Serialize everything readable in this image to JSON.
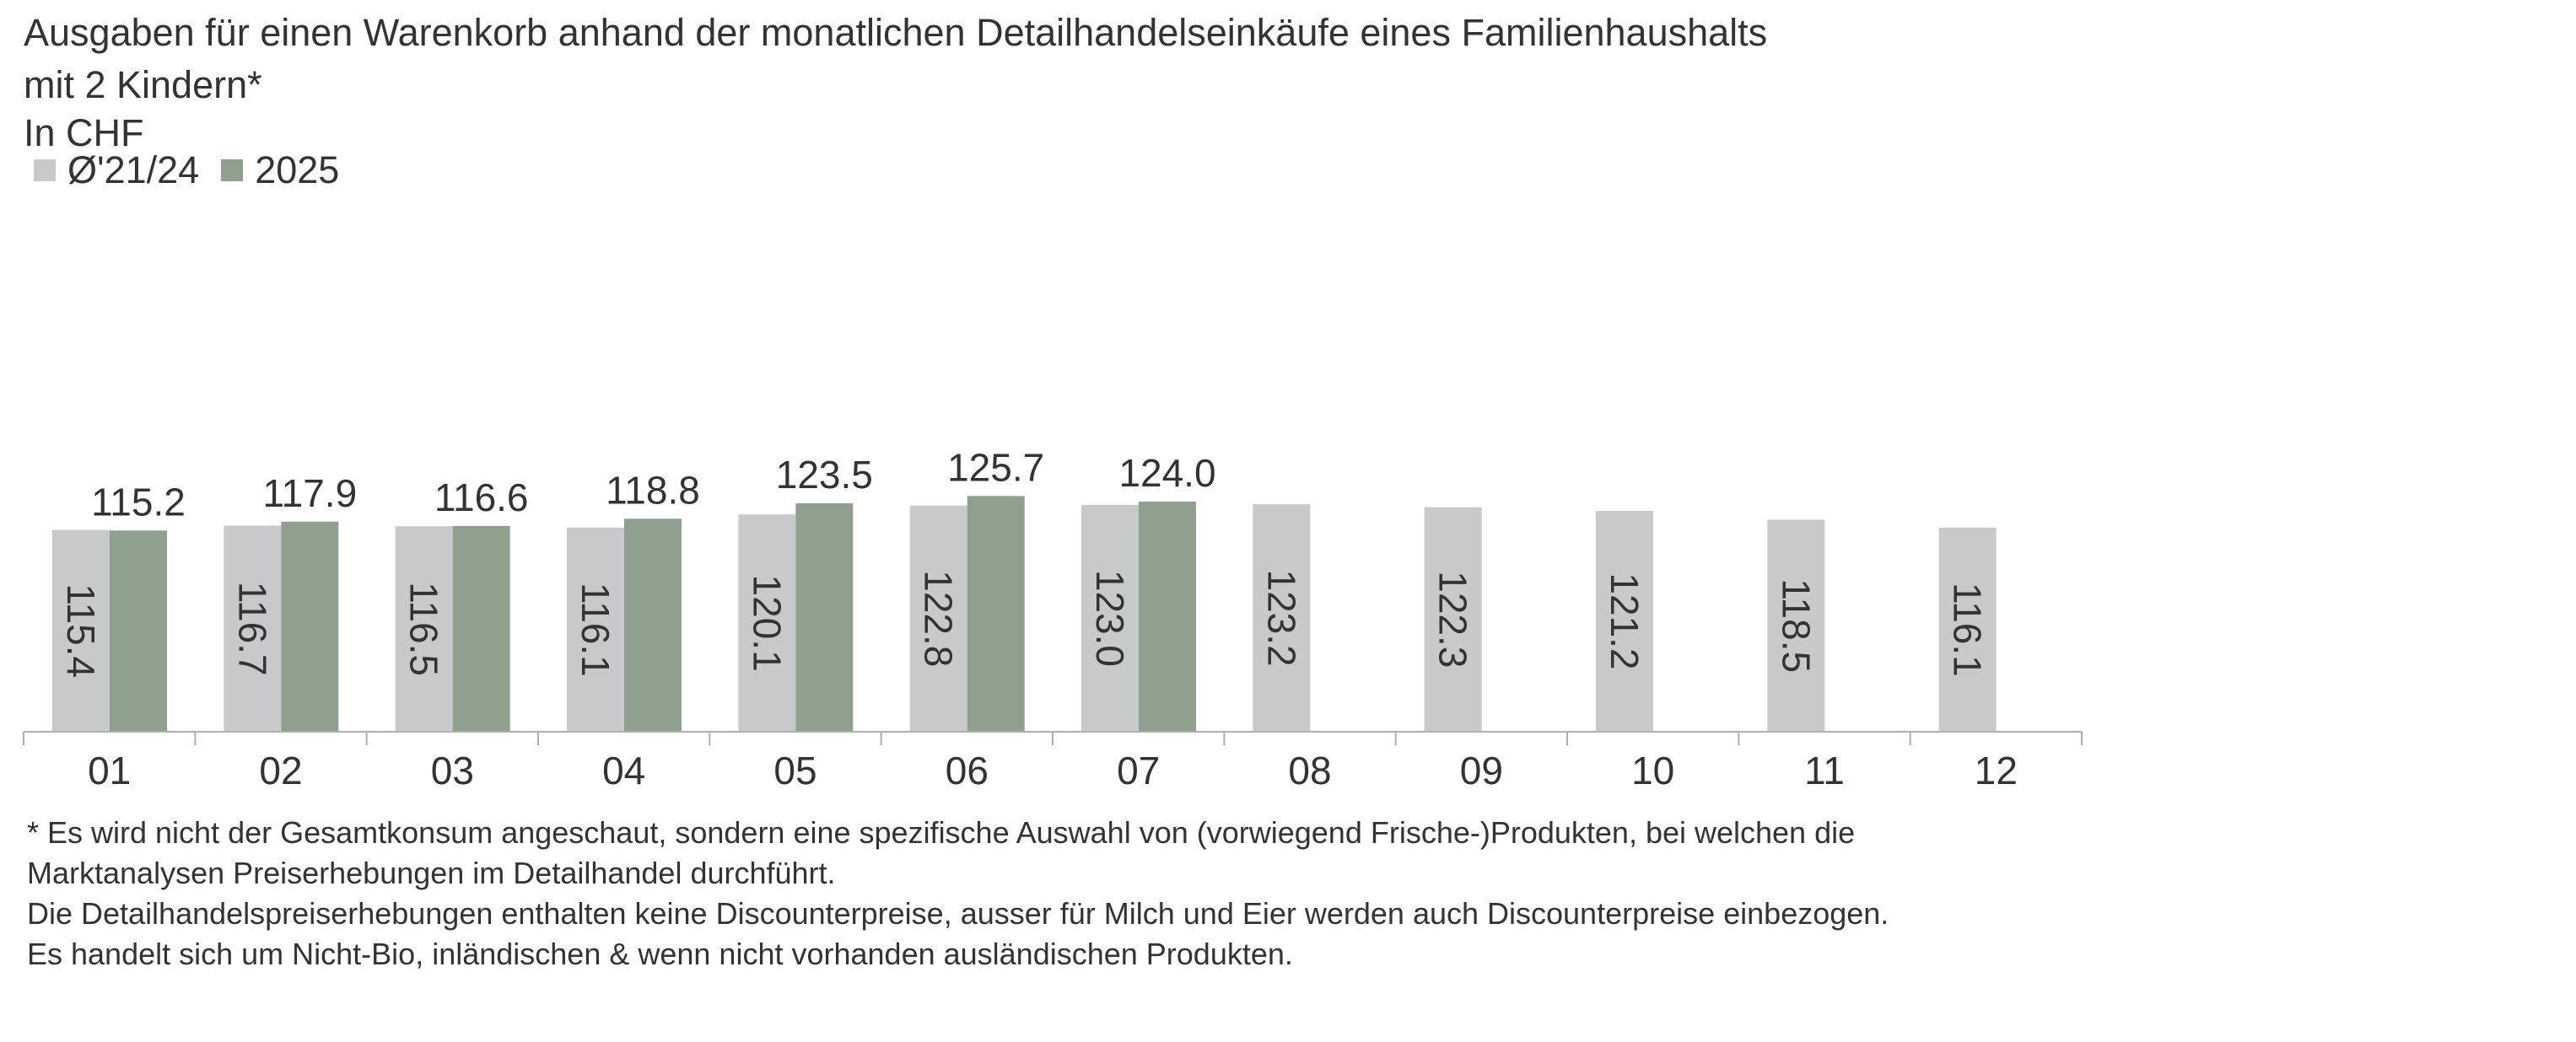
{
  "title": {
    "line1": "Ausgaben für einen Warenkorb anhand der monatlichen Detailhandelseinkäufe eines Familienhaushalts",
    "line2": "mit 2 Kindern*",
    "unit": "In CHF"
  },
  "colors": {
    "avg": "#c8c9cb",
    "current": "#8fa08e",
    "axis": "#b0b0b0",
    "text": "#333333"
  },
  "chart_data": {
    "type": "bar",
    "categories": [
      "01",
      "02",
      "03",
      "04",
      "05",
      "06",
      "07",
      "08",
      "09",
      "10",
      "11",
      "12"
    ],
    "series": [
      {
        "name": "Ø'21/24",
        "values": [
          115.4,
          116.7,
          116.5,
          116.1,
          120.1,
          122.8,
          123.0,
          123.2,
          122.3,
          121.2,
          118.5,
          116.1
        ],
        "label_style": "vertical-inside"
      },
      {
        "name": "2025",
        "values": [
          115.2,
          117.9,
          116.6,
          118.8,
          123.5,
          125.7,
          124.0,
          null,
          null,
          null,
          null,
          null
        ],
        "label_style": "above"
      }
    ],
    "legend_position": "top-left",
    "grid": false
  },
  "footnotes": [
    "* Es wird nicht der Gesamtkonsum angeschaut, sondern eine spezifische Auswahl von (vorwiegend Frische-)Produkten, bei welchen die",
    "Marktanalysen Preiserhebungen im Detailhandel durchführt.",
    "Die Detailhandelspreiserhebungen enthalten keine Discounterpreise, ausser für Milch und Eier werden auch Discounterpreise einbezogen.",
    "Es handelt sich um Nicht-Bio, inländischen & wenn nicht vorhanden ausländischen Produkten."
  ]
}
